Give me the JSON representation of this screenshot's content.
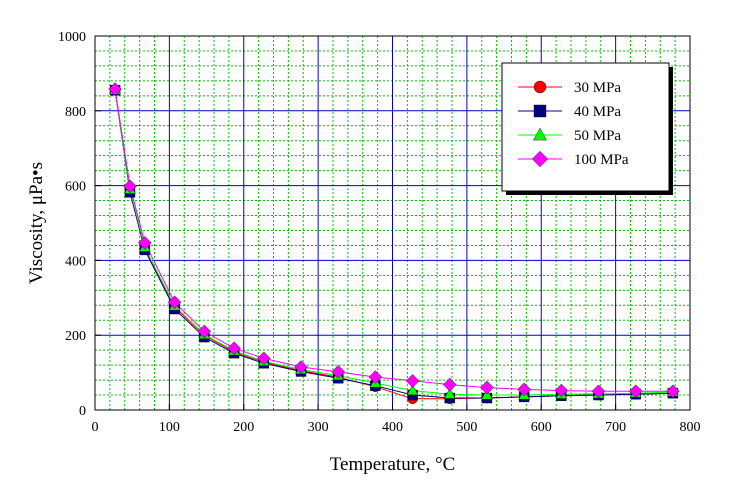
{
  "chart_data": {
    "type": "line",
    "xlabel": "Temperature, °C",
    "ylabel": "Viscosity, μPa•s",
    "xlim": [
      0,
      800
    ],
    "ylim": [
      0,
      1000
    ],
    "xticks": [
      0,
      100,
      200,
      300,
      400,
      500,
      600,
      700,
      800
    ],
    "yticks": [
      0,
      200,
      400,
      600,
      800,
      1000
    ],
    "x_minor_step": 20,
    "y_minor_step": 40,
    "grid": true,
    "legend_position": "top-right",
    "x": [
      27,
      47,
      67,
      107,
      147,
      187,
      227,
      277,
      327,
      377,
      427,
      477,
      527,
      577,
      627,
      677,
      727,
      777
    ],
    "series": [
      {
        "name": "30 MPa",
        "marker": "circle",
        "color": "#ff0000",
        "values": [
          855,
          585,
          430,
          275,
          200,
          155,
          128,
          105,
          88,
          62,
          30,
          30,
          32,
          35,
          38,
          40,
          42,
          45
        ]
      },
      {
        "name": "40 MPa",
        "marker": "square",
        "color": "#000080",
        "values": [
          855,
          582,
          428,
          270,
          195,
          152,
          125,
          103,
          85,
          65,
          40,
          32,
          32,
          35,
          38,
          40,
          42,
          45
        ]
      },
      {
        "name": "50 MPa",
        "marker": "triangle",
        "color": "#00ff00",
        "values": [
          856,
          590,
          435,
          278,
          202,
          158,
          130,
          108,
          92,
          72,
          52,
          42,
          40,
          40,
          42,
          43,
          45,
          48
        ]
      },
      {
        "name": "100 MPa",
        "marker": "diamond",
        "color": "#ff00ff",
        "values": [
          858,
          598,
          447,
          288,
          210,
          165,
          138,
          115,
          102,
          88,
          78,
          68,
          60,
          55,
          52,
          50,
          50,
          50
        ]
      }
    ]
  }
}
